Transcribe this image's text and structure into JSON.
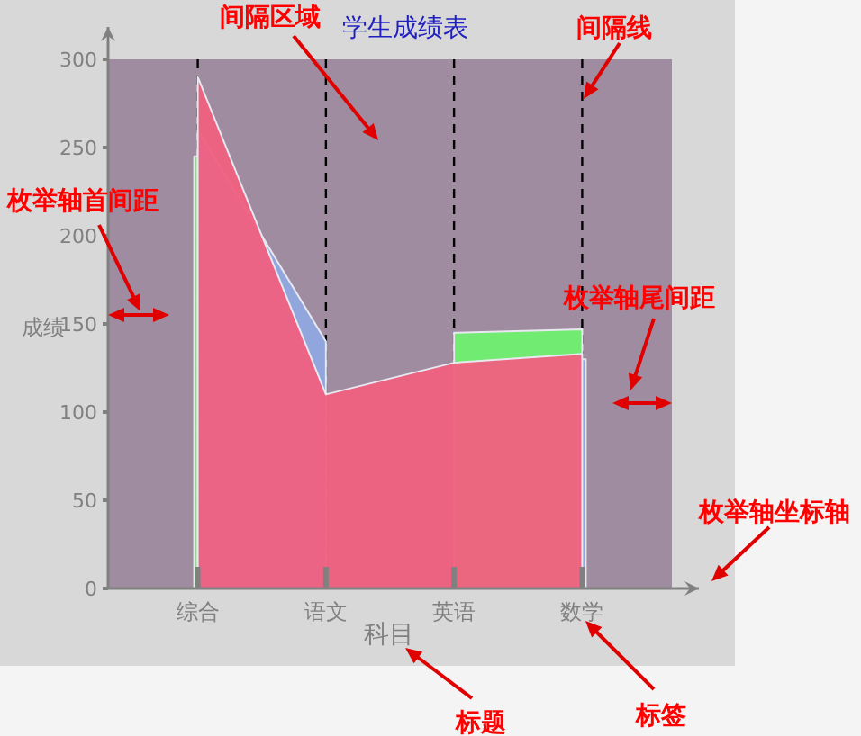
{
  "chart_data": {
    "type": "area",
    "title": "学生成绩表",
    "xlabel": "科目",
    "ylabel": "成绩",
    "categories": [
      "综合",
      "语文",
      "英语",
      "数学"
    ],
    "series": [
      {
        "color": "#f0607f",
        "values": [
          290,
          110,
          128,
          133
        ]
      },
      {
        "color": "#90a8e0",
        "values": [
          260,
          140,
          null,
          130
        ]
      },
      {
        "color": "#70f070",
        "values": [
          245,
          null,
          145,
          147
        ]
      }
    ],
    "ylim": [
      0,
      300
    ],
    "yticks": [
      0,
      50,
      100,
      150,
      200,
      250,
      300
    ],
    "grid": false,
    "ref_lines": [
      {
        "axis": "x",
        "value": "综合",
        "color": "#000000",
        "line_style": "dashed"
      },
      {
        "axis": "x",
        "value": "语文",
        "color": "#000000",
        "line_style": "dashed"
      },
      {
        "axis": "x",
        "value": "英语",
        "color": "#000000",
        "line_style": "dashed"
      },
      {
        "axis": "x",
        "value": "数学",
        "color": "#000000",
        "line_style": "dashed"
      }
    ],
    "annotations": [
      "间隔区域",
      "间隔线",
      "枚举轴首间距",
      "枚举轴尾间距",
      "枚举轴坐标轴",
      "标题",
      "标签"
    ]
  }
}
